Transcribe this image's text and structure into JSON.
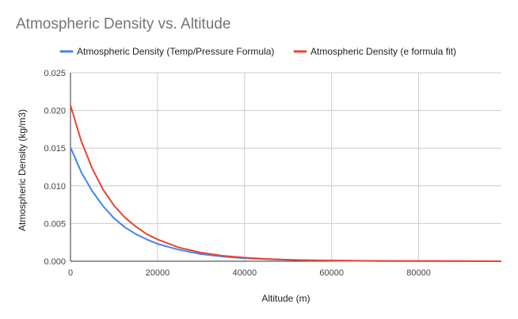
{
  "chart_data": {
    "type": "line",
    "title": "Atmospheric Density vs. Altitude",
    "xlabel": "Altitude (m)",
    "ylabel": "Atmospheric Density (kg/m3)",
    "xlim": [
      0,
      99000
    ],
    "ylim": [
      0,
      0.025
    ],
    "x_ticks": [
      0,
      20000,
      40000,
      60000,
      80000
    ],
    "x_tick_labels": [
      "0",
      "20000",
      "40000",
      "60000",
      "80000"
    ],
    "y_ticks": [
      0,
      0.005,
      0.01,
      0.015,
      0.02,
      0.025
    ],
    "y_tick_labels": [
      "0.000",
      "0.005",
      "0.010",
      "0.015",
      "0.020",
      "0.025"
    ],
    "grid": true,
    "legend_position": "top",
    "x": [
      0,
      2500,
      5000,
      7500,
      10000,
      12500,
      15000,
      17500,
      20000,
      25000,
      30000,
      35000,
      40000,
      45000,
      50000,
      55000,
      60000,
      70000,
      80000,
      90000,
      99000
    ],
    "series": [
      {
        "name": "Atmospheric Density (Temp/Pressure Formula)",
        "color": "#4285F4",
        "values": [
          0.0151,
          0.0118,
          0.0093,
          0.0073,
          0.0057,
          0.0045,
          0.0036,
          0.0029,
          0.0023,
          0.0015,
          0.00095,
          0.00062,
          0.0004,
          0.00027,
          0.00018,
          0.00012,
          8e-05,
          4e-05,
          2e-05,
          1e-05,
          0.0
        ]
      },
      {
        "name": "Atmospheric Density (e formula fit)",
        "color": "#EA4335",
        "values": [
          0.0207,
          0.0159,
          0.0123,
          0.0095,
          0.0074,
          0.0058,
          0.0046,
          0.0036,
          0.0029,
          0.0018,
          0.00115,
          0.00073,
          0.00047,
          0.0003,
          0.0002,
          0.00013,
          9e-05,
          4e-05,
          2e-05,
          1e-05,
          0.0
        ]
      }
    ]
  }
}
